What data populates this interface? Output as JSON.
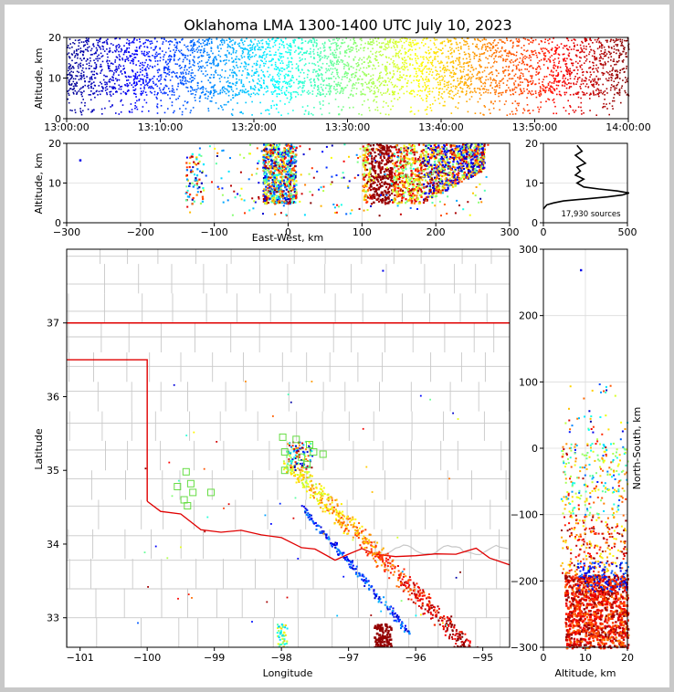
{
  "chart_data": [
    {
      "type": "scatter",
      "panel": "time-altitude",
      "title": "Oklahoma LMA 1300-1400 UTC July 10, 2023",
      "xlabel": "",
      "ylabel": "Altitude, km",
      "xlim": [
        "13:00:00",
        "14:00:00"
      ],
      "ylim": [
        0,
        20
      ],
      "xticks": [
        "13:00:00",
        "13:10:00",
        "13:20:00",
        "13:30:00",
        "13:40:00",
        "13:50:00",
        "14:00:00"
      ],
      "yticks": [
        0,
        10,
        20
      ],
      "color_by": "time",
      "colormap": "jet",
      "description_values": {
        "dense_altitude_range_km": [
          6,
          20
        ],
        "sparse_below_km": 6
      }
    },
    {
      "type": "scatter",
      "panel": "eastwest-altitude",
      "xlabel": "East-West, km",
      "ylabel": "Altitude, km",
      "xlim": [
        -300,
        300
      ],
      "ylim": [
        0,
        20
      ],
      "xticks": [
        -300,
        -200,
        -100,
        0,
        100,
        200,
        300
      ],
      "yticks": [
        0,
        10,
        20
      ],
      "clusters": [
        {
          "x_range_km": [
            -35,
            10
          ],
          "z_range_km": [
            5,
            20
          ]
        },
        {
          "x_range_km": [
            100,
            265
          ],
          "z_range_km": [
            5,
            20
          ]
        },
        {
          "x_range_km": [
            -140,
            -115
          ],
          "z_range_km": [
            5,
            18
          ]
        }
      ]
    },
    {
      "type": "line",
      "panel": "altitude-histogram",
      "xlabel": "",
      "ylabel": "",
      "xlim": [
        0,
        500
      ],
      "ylim": [
        0,
        20
      ],
      "xticks": [
        0,
        500
      ],
      "yticks": [
        0,
        10,
        20
      ],
      "annotation": "17,930 sources",
      "series": [
        {
          "altitude_km": [
            3.5,
            4.5,
            5,
            5.5,
            6,
            6.5,
            7,
            7.5,
            8,
            8.5,
            9,
            10,
            11,
            12,
            13,
            14,
            15,
            16,
            17,
            18,
            19,
            19.5
          ],
          "count": [
            0,
            20,
            60,
            120,
            250,
            380,
            470,
            510,
            440,
            330,
            240,
            200,
            240,
            190,
            220,
            200,
            250,
            220,
            190,
            230,
            210,
            200
          ]
        }
      ]
    },
    {
      "type": "scatter",
      "panel": "plan-view-map",
      "xlabel": "Longitude",
      "ylabel": "Latitude",
      "xlim": [
        -101.2,
        -94.6
      ],
      "ylim": [
        32.6,
        38
      ],
      "xticks": [
        -101,
        -100,
        -99,
        -98,
        -97,
        -96,
        -95
      ],
      "yticks": [
        33,
        34,
        35,
        36,
        37
      ],
      "right_axis_label": "North-South, km",
      "right_axis_ticks": [
        300,
        200,
        100,
        0,
        -100,
        -200,
        -300
      ],
      "stations_marker": "green square"
    },
    {
      "type": "scatter",
      "panel": "altitude-northsouth",
      "xlabel": "Altitude, km",
      "ylabel": "North-South, km",
      "xlim": [
        0,
        20
      ],
      "ylim": [
        -300,
        300
      ],
      "xticks": [
        0,
        10,
        20
      ],
      "yticks": [
        300,
        200,
        100,
        0,
        -100,
        -200,
        -300
      ]
    }
  ],
  "colors": {
    "state_border": "#e00000",
    "county_lines": "#c8c8c8",
    "station_marker": "#66dd44",
    "colormap": [
      "#00008f",
      "#0000ff",
      "#0080ff",
      "#00ffff",
      "#80ff80",
      "#ffff00",
      "#ff8000",
      "#ff0000",
      "#800000"
    ]
  }
}
